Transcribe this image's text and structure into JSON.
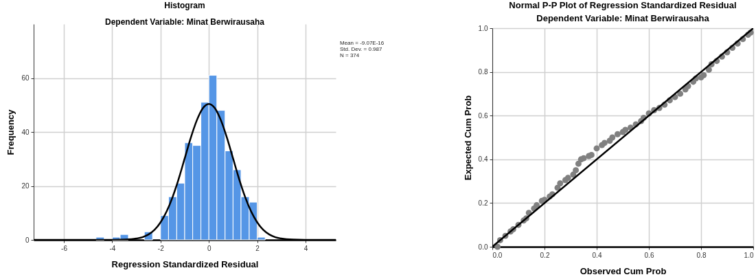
{
  "chart_data": [
    {
      "type": "histogram",
      "title": "Histogram",
      "subtitle": "Dependent Variable: Minat Berwirausaha",
      "xlabel": "Regression Standardized Residual",
      "ylabel": "Frequency",
      "annotations": [
        "Mean = -9.07E-16",
        "Std. Dev. = 0.987",
        "N = 374"
      ],
      "xlim": [
        -7.25,
        5.25
      ],
      "xticks": [
        -6,
        -4,
        -2,
        0,
        2,
        4
      ],
      "ylim": [
        0,
        80
      ],
      "yticks": [
        0,
        20,
        40,
        60
      ],
      "grid": true,
      "bins": [
        -4.67,
        -4.33,
        -4,
        -3.67,
        -3.33,
        -3,
        -2.67,
        -2.33,
        -2,
        -1.67,
        -1.33,
        -1,
        -0.67,
        -0.33,
        0,
        0.33,
        0.67,
        1,
        1.33,
        1.67,
        2,
        2.33
      ],
      "series": [
        {
          "color": "#5596e6",
          "values": [
            1,
            0,
            1,
            2,
            0,
            0,
            3,
            0,
            9,
            16,
            21,
            36,
            35,
            51,
            61,
            48,
            33,
            26,
            16,
            14,
            1
          ]
        },
        {
          "type": "line",
          "color": "#000000",
          "x": [
            -7.25,
            -4,
            -3.5,
            -3,
            -2.75,
            -2.5,
            -2.25,
            -2,
            -1.75,
            -1.5,
            -1.25,
            -1,
            -0.75,
            -0.5,
            -0.25,
            0,
            0.25,
            0.5,
            0.75,
            1,
            1.25,
            1.5,
            1.75,
            2,
            2.25,
            2.5,
            2.75,
            3,
            3.5,
            4,
            5.25
          ],
          "values": [
            0,
            0,
            0.1,
            0.5,
            1,
            2,
            3.7,
            6.5,
            10.5,
            15.9,
            22.6,
            30.2,
            37.8,
            44.3,
            48.8,
            50.4,
            48.8,
            44.3,
            37.8,
            30.2,
            22.6,
            15.9,
            10.5,
            6.5,
            3.7,
            2,
            1,
            0.5,
            0.1,
            0,
            0
          ]
        }
      ]
    },
    {
      "type": "scatter",
      "title": "Normal P-P Plot of Regression Standardized Residual",
      "subtitle": "Dependent Variable: Minat Berwirausaha",
      "xlabel": "Observed Cum Prob",
      "ylabel": "Expected Cum Prob",
      "xlim": [
        0,
        1
      ],
      "ylim": [
        0,
        1
      ],
      "xticks": [
        {
          "value": 0,
          "label": "0.0"
        },
        0.2,
        0.4,
        0.6,
        0.8,
        {
          "value": 1,
          "label": "1.0"
        }
      ],
      "yticks": [
        {
          "value": 0,
          "label": "0.0"
        },
        0.2,
        0.4,
        0.6,
        0.8,
        {
          "value": 1,
          "label": "1.0"
        }
      ],
      "grid": true,
      "series": [
        {
          "marker": "circle",
          "color": "#808080",
          "x": [
            0.02,
            0.03,
            0.05,
            0.07,
            0.08,
            0.1,
            0.12,
            0.13,
            0.14,
            0.16,
            0.17,
            0.19,
            0.2,
            0.22,
            0.23,
            0.25,
            0.26,
            0.28,
            0.29,
            0.31,
            0.32,
            0.33,
            0.34,
            0.35,
            0.37,
            0.38,
            0.4,
            0.42,
            0.43,
            0.45,
            0.46,
            0.48,
            0.5,
            0.51,
            0.53,
            0.55,
            0.57,
            0.58,
            0.6,
            0.62,
            0.64,
            0.66,
            0.68,
            0.7,
            0.72,
            0.74,
            0.75,
            0.77,
            0.78,
            0.8,
            0.81,
            0.83,
            0.84,
            0.86,
            0.88,
            0.9,
            0.92,
            0.94,
            0.96,
            0.98,
            0.99
          ],
          "values": [
            0,
            0.03,
            0.05,
            0.07,
            0.08,
            0.1,
            0.12,
            0.13,
            0.155,
            0.175,
            0.19,
            0.21,
            0.215,
            0.23,
            0.24,
            0.27,
            0.29,
            0.305,
            0.315,
            0.33,
            0.35,
            0.38,
            0.4,
            0.405,
            0.415,
            0.42,
            0.45,
            0.465,
            0.475,
            0.485,
            0.5,
            0.515,
            0.525,
            0.535,
            0.545,
            0.56,
            0.575,
            0.59,
            0.61,
            0.625,
            0.635,
            0.65,
            0.67,
            0.685,
            0.7,
            0.72,
            0.735,
            0.755,
            0.77,
            0.775,
            0.785,
            0.81,
            0.835,
            0.85,
            0.87,
            0.89,
            0.91,
            0.93,
            0.95,
            0.97,
            0.98
          ]
        },
        {
          "type": "line",
          "color": "#000000",
          "x": [
            0,
            1
          ],
          "values": [
            0,
            1
          ]
        }
      ]
    }
  ]
}
